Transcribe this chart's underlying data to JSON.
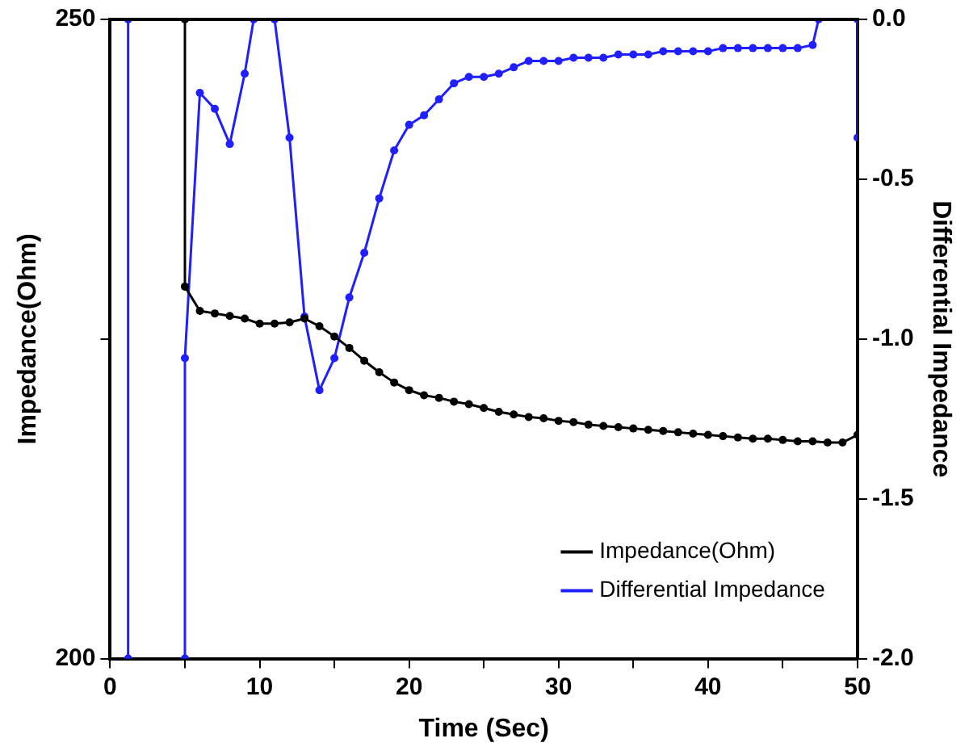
{
  "chart_data": {
    "type": "line",
    "xlabel": "Time (Sec)",
    "ylabel": "Impedance(Ohm)",
    "y2label": "Differential Impedance",
    "xlim": [
      0,
      50
    ],
    "xticks": [
      0,
      {
        "value": 5,
        "label": null
      },
      10,
      {
        "value": 15,
        "label": null
      },
      20,
      {
        "value": 25,
        "label": null
      },
      30,
      {
        "value": 35,
        "label": null
      },
      40,
      {
        "value": 45,
        "label": null
      },
      50
    ],
    "ylim": [
      200,
      250
    ],
    "yticks": [
      200,
      {
        "value": 225,
        "label": null
      },
      250
    ],
    "y2lim": [
      -2,
      0
    ],
    "y2ticks": [
      {
        "value": -2,
        "label": "-2.0"
      },
      {
        "value": -1.5,
        "label": "-1.5"
      },
      {
        "value": -1,
        "label": "-1.0"
      },
      {
        "value": -0.5,
        "label": "-0.5"
      },
      {
        "value": 0,
        "label": "0.0"
      }
    ],
    "grid": false,
    "legend": "bottom right",
    "marker": "circle",
    "series": [
      {
        "name": "Impedance(Ohm)",
        "color": "#000000",
        "x": [
          5,
          5,
          6,
          7,
          8,
          9,
          10,
          11,
          12,
          13,
          14,
          15,
          16,
          17,
          18,
          19,
          20,
          21,
          22,
          23,
          24,
          25,
          26,
          27,
          28,
          29,
          30,
          31,
          32,
          33,
          34,
          35,
          36,
          37,
          38,
          39,
          40,
          41,
          42,
          43,
          44,
          45,
          46,
          47,
          48,
          49,
          50
        ],
        "values": [
          250,
          229.1,
          227.2,
          227.0,
          226.8,
          226.6,
          226.2,
          226.2,
          226.3,
          226.6,
          226.0,
          225.2,
          224.3,
          223.3,
          222.4,
          221.6,
          221.0,
          220.6,
          220.4,
          220.1,
          219.9,
          219.6,
          219.3,
          219.1,
          218.9,
          218.8,
          218.6,
          218.5,
          218.3,
          218.2,
          218.1,
          218.0,
          217.9,
          217.8,
          217.7,
          217.6,
          217.5,
          217.4,
          217.3,
          217.2,
          217.2,
          217.1,
          217.0,
          217.0,
          216.9,
          216.9,
          217.5
        ]
      },
      {
        "name": "Differential Impedance",
        "color": "#1f1fff",
        "axis": "y2",
        "x": [
          1.2,
          1.2,
          null,
          5,
          5,
          6,
          7,
          8,
          9,
          9.6,
          null,
          11,
          12,
          13,
          14,
          15,
          16,
          17,
          18,
          19,
          20,
          21,
          22,
          23,
          24,
          25,
          26,
          27,
          28,
          29,
          30,
          31,
          32,
          33,
          34,
          35,
          36,
          37,
          38,
          39,
          40,
          41,
          42,
          43,
          44,
          45,
          46,
          47,
          47.4,
          null,
          50,
          50
        ],
        "values": [
          0,
          -2,
          null,
          -2,
          -1.06,
          -0.23,
          -0.28,
          -0.39,
          -0.17,
          0,
          null,
          0,
          -0.37,
          -0.93,
          -1.16,
          -1.06,
          -0.87,
          -0.73,
          -0.56,
          -0.41,
          -0.33,
          -0.3,
          -0.25,
          -0.2,
          -0.18,
          -0.18,
          -0.17,
          -0.15,
          -0.13,
          -0.13,
          -0.13,
          -0.12,
          -0.12,
          -0.12,
          -0.11,
          -0.11,
          -0.11,
          -0.1,
          -0.1,
          -0.1,
          -0.1,
          -0.09,
          -0.09,
          -0.09,
          -0.09,
          -0.09,
          -0.09,
          -0.08,
          0,
          null,
          0,
          -0.37
        ]
      }
    ]
  }
}
